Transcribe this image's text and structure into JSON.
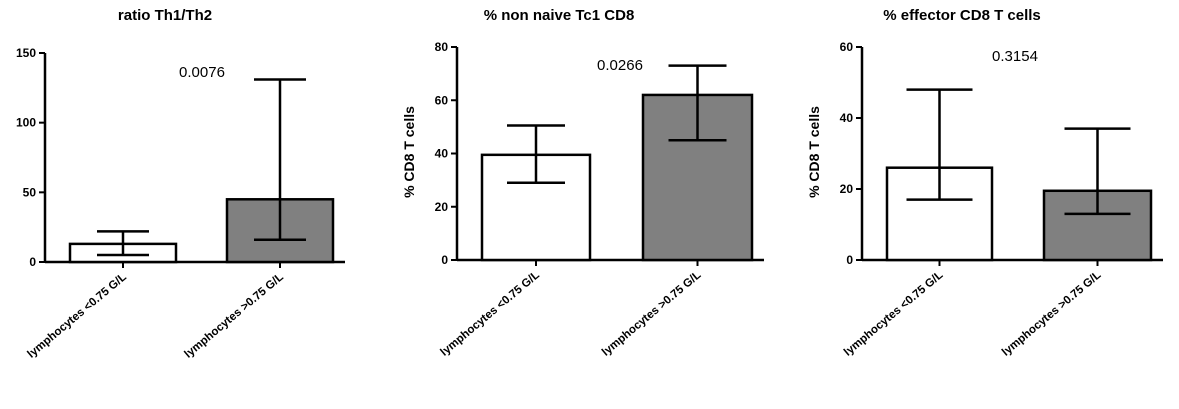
{
  "chart_data": [
    {
      "type": "bar",
      "title": "ratio Th1/Th2",
      "ylabel": "",
      "categories": [
        "lymphocytes <0.75 G/L",
        "lymphocytes >0.75 G/L"
      ],
      "values": [
        13,
        45
      ],
      "error_low": [
        5,
        16
      ],
      "error_high": [
        22,
        131
      ],
      "bar_colors": [
        "#ffffff",
        "#808080"
      ],
      "ylim": [
        0,
        150
      ],
      "yticks": [
        0,
        50,
        100,
        150
      ],
      "pvalue": "0.0076"
    },
    {
      "type": "bar",
      "title": "% non naive Tc1 CD8",
      "ylabel": "% CD8 T cells",
      "categories": [
        "lymphocytes <0.75 G/L",
        "lymphocytes >0.75 G/L"
      ],
      "values": [
        39.5,
        62
      ],
      "error_low": [
        29,
        45
      ],
      "error_high": [
        50.5,
        73
      ],
      "bar_colors": [
        "#ffffff",
        "#808080"
      ],
      "ylim": [
        0,
        80
      ],
      "yticks": [
        0,
        20,
        40,
        60,
        80
      ],
      "pvalue": "0.0266"
    },
    {
      "type": "bar",
      "title": "% effector CD8 T cells",
      "ylabel": "% CD8 T cells",
      "categories": [
        "lymphocytes <0.75 G/L",
        "lymphocytes >0.75 G/L"
      ],
      "values": [
        26,
        19.5
      ],
      "error_low": [
        17,
        13
      ],
      "error_high": [
        48,
        37
      ],
      "bar_colors": [
        "#ffffff",
        "#808080"
      ],
      "ylim": [
        0,
        60
      ],
      "yticks": [
        0,
        20,
        40,
        60
      ],
      "pvalue": "0.3154"
    }
  ]
}
